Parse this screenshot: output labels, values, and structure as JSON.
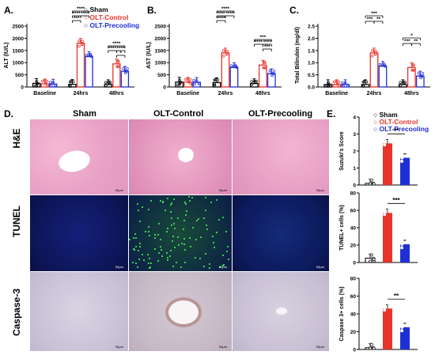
{
  "panels": {
    "A": "A.",
    "B": "B.",
    "C": "C.",
    "D": "D.",
    "E": "E."
  },
  "legend_top": [
    {
      "name": "Sham",
      "color": "#000000"
    },
    {
      "name": "OLT-Control",
      "color": "#e8332a"
    },
    {
      "name": "OLT-Precooling",
      "color": "#1f2fd6"
    }
  ],
  "legend_e": [
    {
      "name": "Sham",
      "color": "#000000"
    },
    {
      "name": "OLT-Control",
      "color": "#e8332a"
    },
    {
      "name": "OLT-Precooling",
      "color": "#1f2fd6"
    }
  ],
  "micro": {
    "columns": [
      "Sham",
      "OLT-Control",
      "OLT-Precooling"
    ],
    "rows": [
      "H&E",
      "TUNEL",
      "Caspase-3"
    ],
    "scale": "50μm"
  },
  "chart_data": [
    {
      "id": "A",
      "type": "bar",
      "ylabel": "ALT (IU/L)",
      "categories": [
        "Baseline",
        "24hrs",
        "48hrs"
      ],
      "yticks": [
        "0",
        "500",
        "1000",
        "1500",
        "2000",
        "2500"
      ],
      "ylim": [
        0,
        2600
      ],
      "series": [
        {
          "name": "Sham",
          "values": [
            150,
            110,
            100
          ]
        },
        {
          "name": "OLT-Control",
          "values": [
            130,
            1800,
            950
          ]
        },
        {
          "name": "OLT-Precooling",
          "values": [
            120,
            1250,
            650
          ]
        }
      ],
      "sig": [
        "****",
        "****",
        "****",
        "***",
        "****",
        "****",
        "****",
        "*"
      ]
    },
    {
      "id": "B",
      "type": "bar",
      "ylabel": "AST (IU/L)",
      "categories": [
        "Baseline",
        "24hrs",
        "48hrs"
      ],
      "yticks": [
        "0",
        "500",
        "1000",
        "1500",
        "2000",
        "2500"
      ],
      "ylim": [
        0,
        2600
      ],
      "series": [
        {
          "name": "Sham",
          "values": [
            200,
            180,
            140
          ]
        },
        {
          "name": "OLT-Control",
          "values": [
            200,
            1400,
            900
          ]
        },
        {
          "name": "OLT-Precooling",
          "values": [
            190,
            800,
            550
          ]
        }
      ],
      "sig": [
        "****",
        "****",
        "****",
        "****",
        "***",
        "****",
        "****",
        "***"
      ]
    },
    {
      "id": "C",
      "type": "bar",
      "ylabel": "Total Bilirubin (mg/dl)",
      "categories": [
        "Baseline",
        "24hrs",
        "48hrs"
      ],
      "yticks": [
        "0.0",
        "0.5",
        "1.0",
        "1.5",
        "2.0",
        "2.5"
      ],
      "ylim": [
        0,
        2.6
      ],
      "series": [
        {
          "name": "Sham",
          "values": [
            0.1,
            0.1,
            0.1
          ]
        },
        {
          "name": "OLT-Control",
          "values": [
            0.1,
            1.4,
            0.8
          ]
        },
        {
          "name": "OLT-Precooling",
          "values": [
            0.1,
            0.85,
            0.45
          ]
        }
      ],
      "sig": [
        "***",
        "***",
        "**",
        "*",
        "***",
        "**"
      ]
    },
    {
      "id": "E1",
      "type": "bar",
      "ylabel": "Suzuki's Score",
      "categories": [
        "Sham",
        "OLT-Control",
        "OLT-Precooling"
      ],
      "yticks": [
        "0",
        "1",
        "2",
        "3",
        "4"
      ],
      "ylim": [
        0,
        4
      ],
      "values": [
        0.1,
        2.45,
        1.6
      ],
      "sig": [
        "**"
      ]
    },
    {
      "id": "E2",
      "type": "bar",
      "ylabel": "TUNEL+ cells (%)",
      "categories": [
        "Sham",
        "OLT-Control",
        "OLT-Precooling"
      ],
      "yticks": [
        "0",
        "20",
        "40",
        "60",
        "80"
      ],
      "ylim": [
        0,
        80
      ],
      "values": [
        5,
        57,
        21
      ],
      "sig": [
        "***"
      ]
    },
    {
      "id": "E3",
      "type": "bar",
      "ylabel": "Caspase 3+ cells (%)",
      "categories": [
        "Sham",
        "OLT-Control",
        "OLT-Precooling"
      ],
      "yticks": [
        "0",
        "20",
        "40",
        "60",
        "80"
      ],
      "ylim": [
        0,
        80
      ],
      "values": [
        2,
        46,
        25
      ],
      "sig": [
        "**"
      ]
    }
  ]
}
